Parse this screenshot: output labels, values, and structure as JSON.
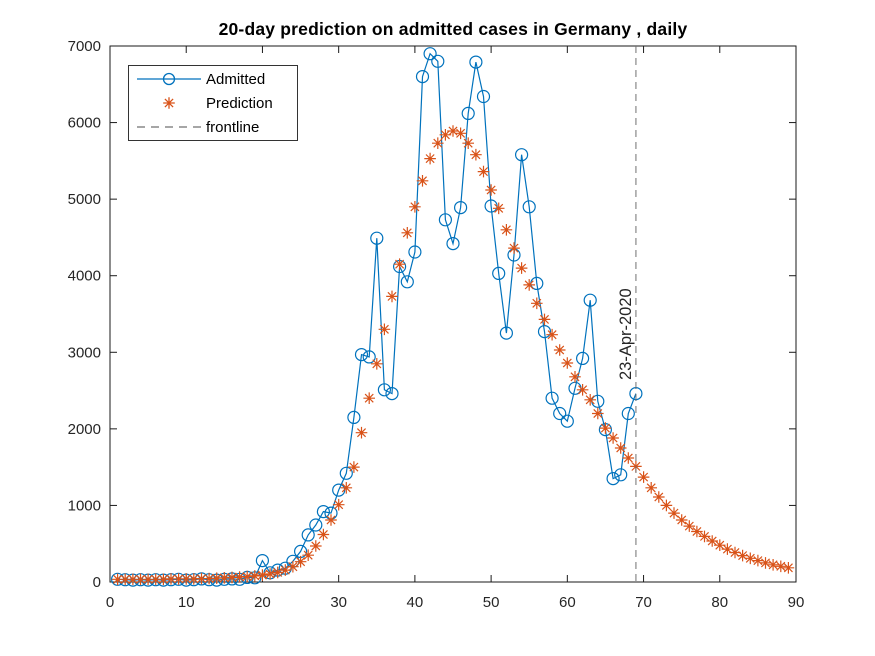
{
  "figure": {
    "background": "#ffffff"
  },
  "legend": {
    "items": [
      {
        "label": "Admitted",
        "marker": "circle-line-icon",
        "color": "#0072BD"
      },
      {
        "label": "Prediction",
        "marker": "asterisk-icon",
        "color": "#D95319"
      },
      {
        "label": "frontline",
        "marker": "dashed-line-icon",
        "color": "#707070"
      }
    ]
  },
  "chart_data": {
    "type": "line",
    "title": "20-day prediction on admitted cases in Germany , daily",
    "xlabel": "",
    "ylabel": "",
    "xlim": [
      0,
      90
    ],
    "ylim": [
      0,
      7000
    ],
    "xticks": [
      0,
      10,
      20,
      30,
      40,
      50,
      60,
      70,
      80,
      90
    ],
    "yticks": [
      0,
      1000,
      2000,
      3000,
      4000,
      5000,
      6000,
      7000
    ],
    "grid": false,
    "legend_position": "top-left",
    "axis_color": "#1a1a1a",
    "series": [
      {
        "name": "Admitted",
        "type": "line+marker",
        "marker": "circle",
        "color": "#0072BD",
        "x": [
          1,
          2,
          3,
          4,
          5,
          6,
          7,
          8,
          9,
          10,
          11,
          12,
          13,
          14,
          15,
          16,
          17,
          18,
          19,
          20,
          21,
          22,
          23,
          24,
          25,
          26,
          27,
          28,
          29,
          30,
          31,
          32,
          33,
          34,
          35,
          36,
          37,
          38,
          39,
          40,
          41,
          42,
          43,
          44,
          45,
          46,
          47,
          48,
          49,
          50,
          51,
          52,
          53,
          54,
          55,
          56,
          57,
          58,
          59,
          60,
          61,
          62,
          63,
          64,
          65,
          66,
          67,
          68,
          69
        ],
        "values": [
          35,
          30,
          25,
          30,
          25,
          30,
          25,
          30,
          35,
          25,
          30,
          40,
          30,
          25,
          35,
          40,
          35,
          60,
          55,
          280,
          120,
          155,
          180,
          270,
          400,
          615,
          745,
          920,
          900,
          1200,
          1420,
          2150,
          2970,
          2940,
          4490,
          2510,
          2460,
          4120,
          3920,
          4310,
          6600,
          6900,
          6800,
          4730,
          4420,
          4890,
          6120,
          6790,
          6340,
          4910,
          4030,
          3250,
          4270,
          5580,
          4900,
          3900,
          3270,
          2400,
          2200,
          2100,
          2530,
          2920,
          3680,
          2360,
          1990,
          1350,
          1400,
          2200,
          2460
        ]
      },
      {
        "name": "Prediction",
        "type": "marker",
        "marker": "asterisk",
        "color": "#D95319",
        "x": [
          1,
          2,
          3,
          4,
          5,
          6,
          7,
          8,
          9,
          10,
          11,
          12,
          13,
          14,
          15,
          16,
          17,
          18,
          19,
          20,
          21,
          22,
          23,
          24,
          25,
          26,
          27,
          28,
          29,
          30,
          31,
          32,
          33,
          34,
          35,
          36,
          37,
          38,
          39,
          40,
          41,
          42,
          43,
          44,
          45,
          46,
          47,
          48,
          49,
          50,
          51,
          52,
          53,
          54,
          55,
          56,
          57,
          58,
          59,
          60,
          61,
          62,
          63,
          64,
          65,
          66,
          67,
          68,
          69,
          70,
          71,
          72,
          73,
          74,
          75,
          76,
          77,
          78,
          79,
          80,
          81,
          82,
          83,
          84,
          85,
          86,
          87,
          88,
          89
        ],
        "values": [
          35,
          35,
          35,
          35,
          35,
          35,
          35,
          40,
          40,
          40,
          40,
          45,
          45,
          50,
          55,
          60,
          65,
          70,
          80,
          90,
          105,
          125,
          155,
          200,
          265,
          350,
          470,
          620,
          810,
          1010,
          1230,
          1500,
          1950,
          2400,
          2850,
          3300,
          3730,
          4150,
          4560,
          4900,
          5240,
          5530,
          5730,
          5840,
          5890,
          5860,
          5730,
          5580,
          5360,
          5120,
          4880,
          4600,
          4360,
          4100,
          3880,
          3640,
          3430,
          3230,
          3030,
          2860,
          2680,
          2510,
          2380,
          2200,
          2010,
          1880,
          1750,
          1620,
          1510,
          1370,
          1230,
          1110,
          1000,
          900,
          810,
          730,
          660,
          595,
          535,
          480,
          430,
          385,
          345,
          310,
          280,
          250,
          225,
          205,
          185
        ]
      },
      {
        "name": "frontline",
        "type": "vline",
        "style": "dashed",
        "color": "#707070",
        "x": 69,
        "label": "23-Apr-2020"
      }
    ]
  }
}
